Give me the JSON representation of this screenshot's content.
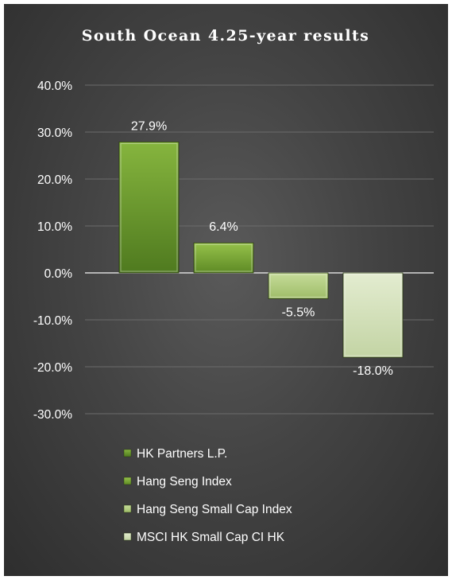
{
  "chart_data": {
    "type": "bar",
    "title": "South Ocean 4.25-year results",
    "xlabel": "",
    "ylabel": "",
    "ylim": [
      -30,
      40
    ],
    "ytick_values": [
      40,
      30,
      20,
      10,
      0,
      -10,
      -20,
      -30
    ],
    "ytick_labels": [
      "40.0%",
      "30.0%",
      "20.0%",
      "10.0%",
      "0.0%",
      "-10.0%",
      "-20.0%",
      "-30.0%"
    ],
    "grid": true,
    "legend_position": "bottom",
    "series": [
      {
        "name": "HK Partners L.P.",
        "value": 27.9,
        "label": "27.9%",
        "color_top": "#86b53e",
        "color_bottom": "#4f7a1f"
      },
      {
        "name": "Hang Seng Index",
        "value": 6.4,
        "label": "6.4%",
        "color_top": "#96c24a",
        "color_bottom": "#5e8a25"
      },
      {
        "name": "Hang Seng Small Cap Index",
        "value": -5.5,
        "label": "-5.5%",
        "color_top": "#c6dc9a",
        "color_bottom": "#9ebc68"
      },
      {
        "name": "MSCI HK Small Cap CI HK",
        "value": -18.0,
        "label": "-18.0%",
        "color_top": "#e3ecd0",
        "color_bottom": "#c3d4a4"
      }
    ]
  }
}
